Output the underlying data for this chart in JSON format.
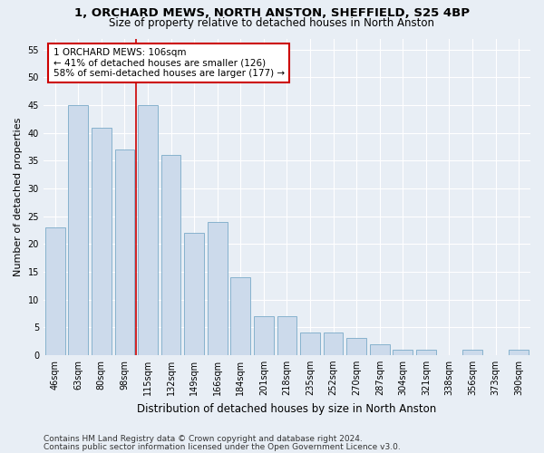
{
  "title_line1": "1, ORCHARD MEWS, NORTH ANSTON, SHEFFIELD, S25 4BP",
  "title_line2": "Size of property relative to detached houses in North Anston",
  "xlabel": "Distribution of detached houses by size in North Anston",
  "ylabel": "Number of detached properties",
  "categories": [
    "46sqm",
    "63sqm",
    "80sqm",
    "98sqm",
    "115sqm",
    "132sqm",
    "149sqm",
    "166sqm",
    "184sqm",
    "201sqm",
    "218sqm",
    "235sqm",
    "252sqm",
    "270sqm",
    "287sqm",
    "304sqm",
    "321sqm",
    "338sqm",
    "356sqm",
    "373sqm",
    "390sqm"
  ],
  "values": [
    23,
    45,
    41,
    37,
    45,
    36,
    22,
    24,
    14,
    7,
    7,
    4,
    4,
    3,
    2,
    1,
    1,
    0,
    1,
    0,
    1
  ],
  "bar_color": "#ccdaeb",
  "bar_edge_color": "#7aaac8",
  "property_line_x": 3.5,
  "annotation_text": "1 ORCHARD MEWS: 106sqm\n← 41% of detached houses are smaller (126)\n58% of semi-detached houses are larger (177) →",
  "annotation_box_color": "#ffffff",
  "annotation_box_edge": "#cc0000",
  "property_line_color": "#cc0000",
  "ylim": [
    0,
    57
  ],
  "yticks": [
    0,
    5,
    10,
    15,
    20,
    25,
    30,
    35,
    40,
    45,
    50,
    55
  ],
  "footer_line1": "Contains HM Land Registry data © Crown copyright and database right 2024.",
  "footer_line2": "Contains public sector information licensed under the Open Government Licence v3.0.",
  "bg_color": "#e8eef5",
  "plot_bg_color": "#e8eef5",
  "title_fontsize": 9.5,
  "subtitle_fontsize": 8.5,
  "axis_label_fontsize": 8,
  "tick_fontsize": 7,
  "footer_fontsize": 6.5,
  "annotation_fontsize": 7.5
}
